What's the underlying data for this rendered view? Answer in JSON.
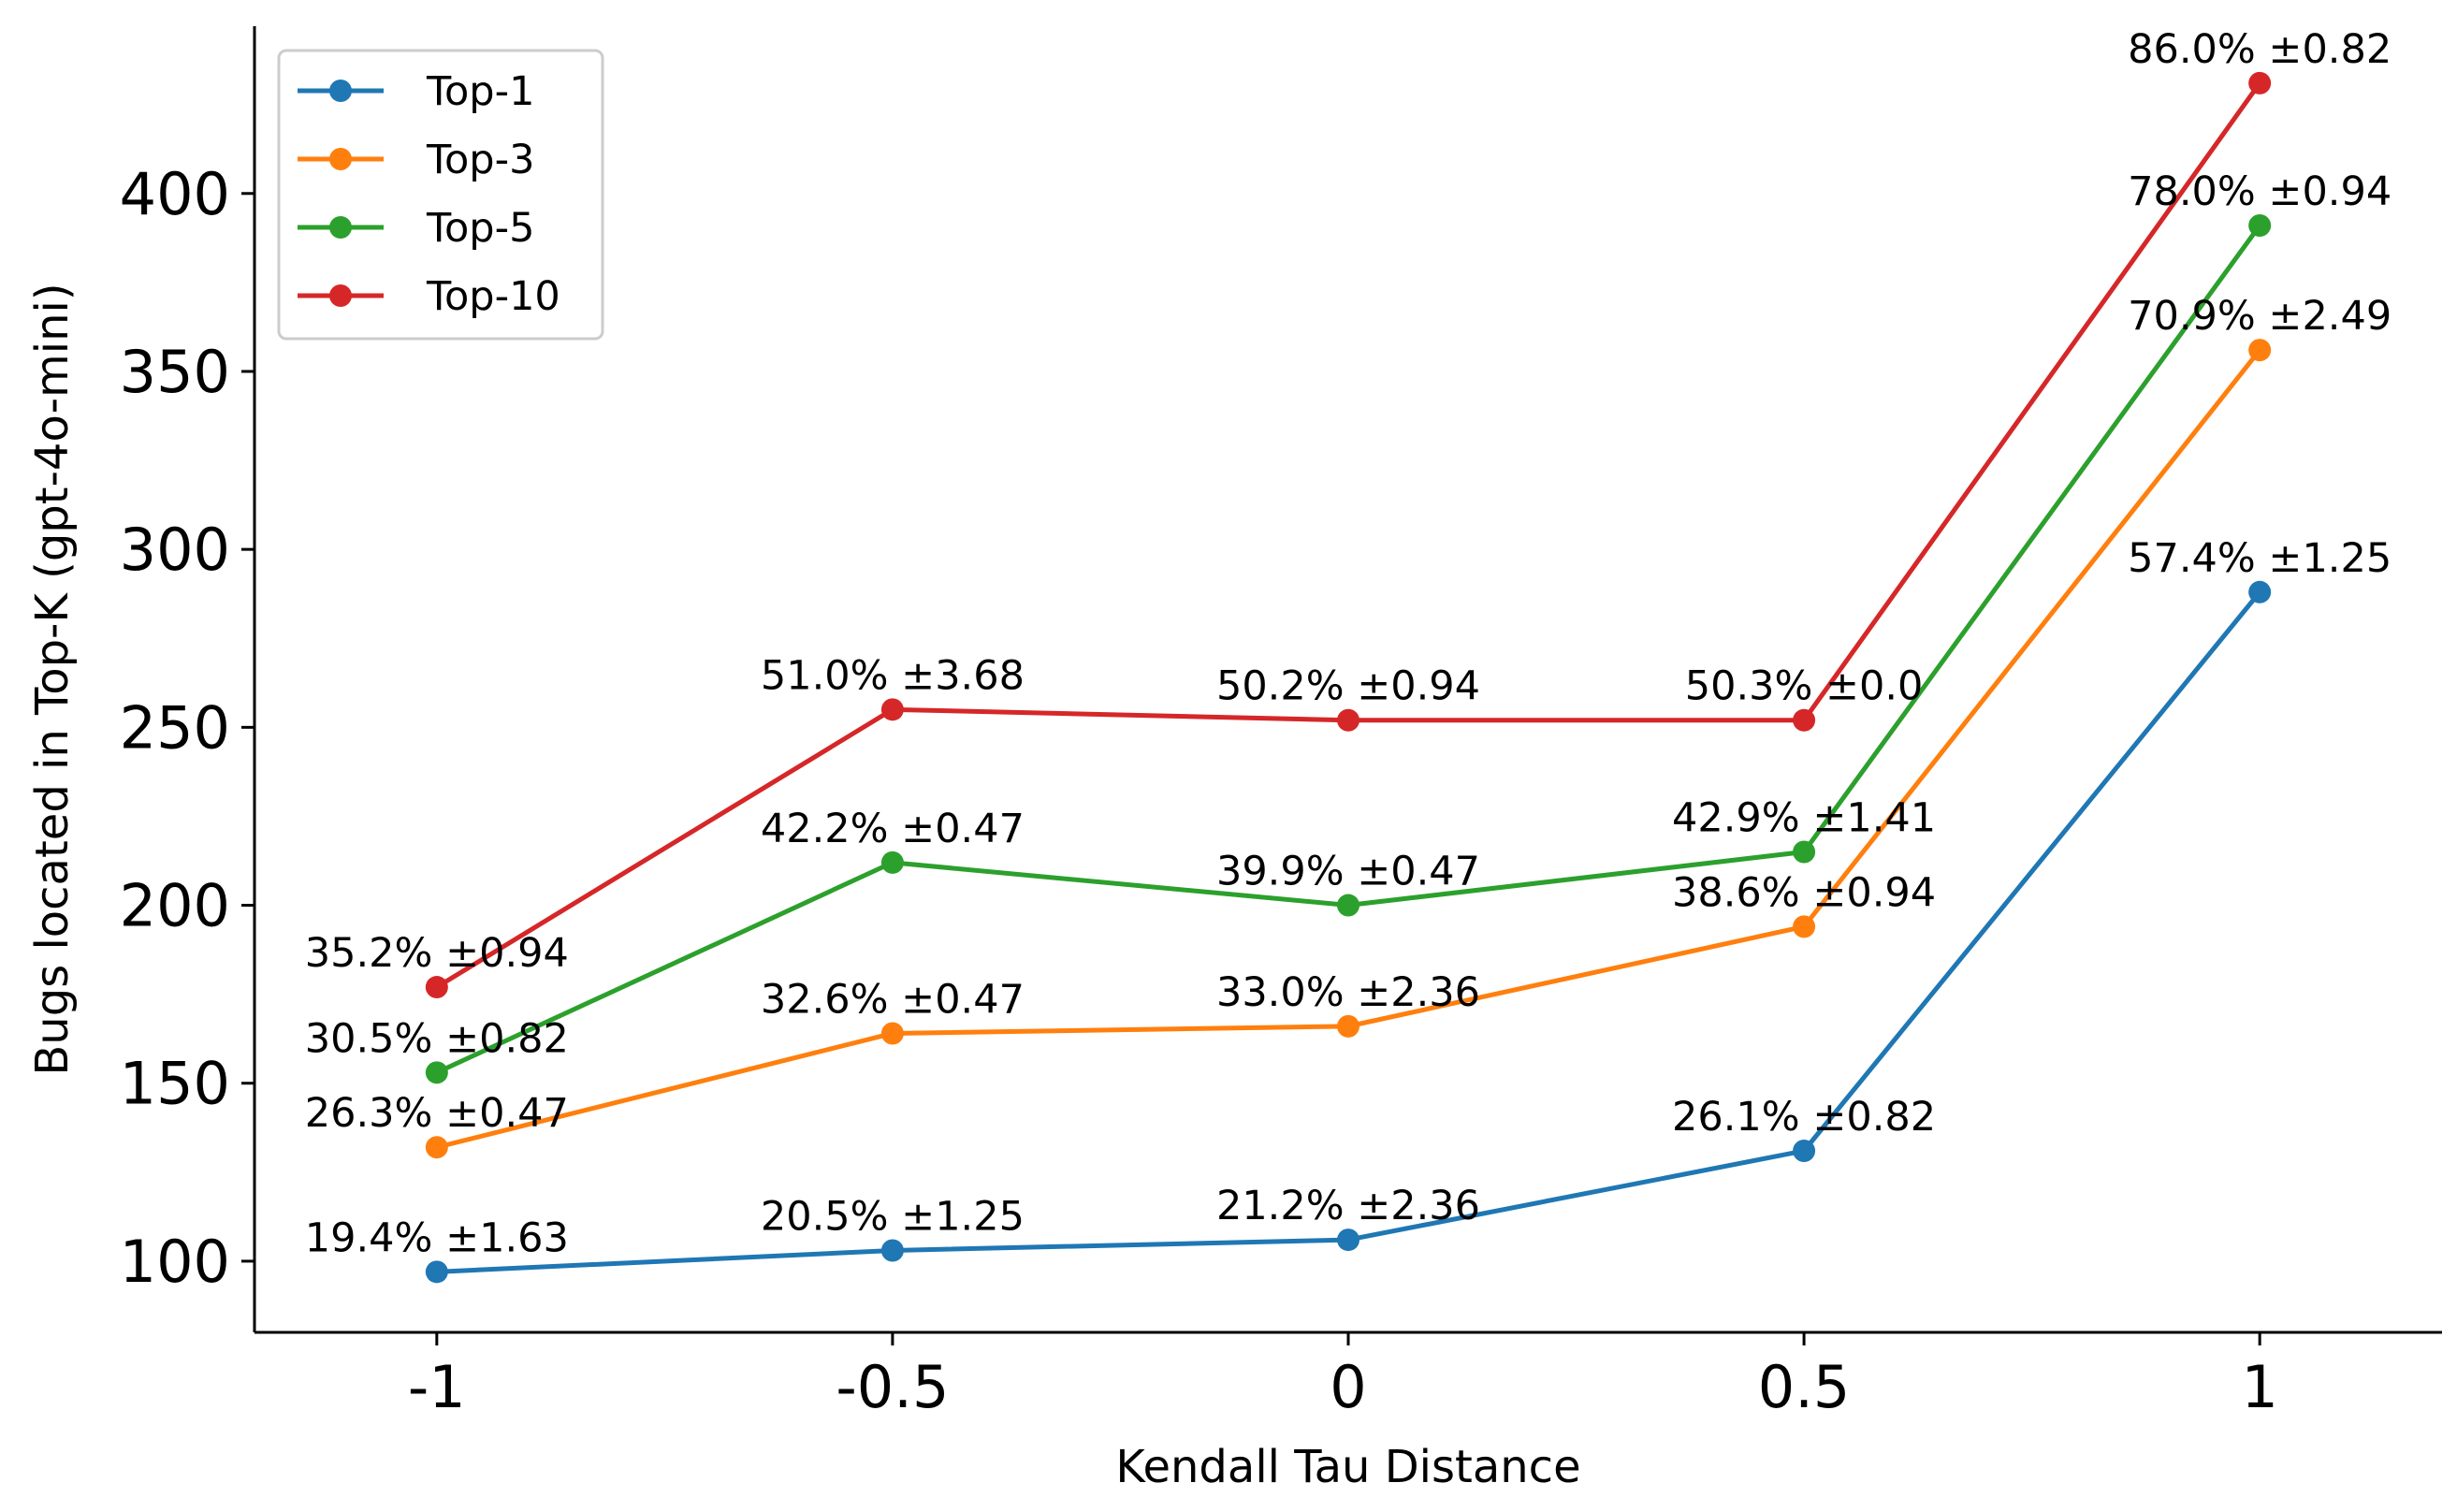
{
  "chart_data": {
    "type": "line",
    "title": "",
    "xlabel": "Kendall Tau Distance",
    "ylabel": "Bugs located in Top-K (gpt-4o-mini)",
    "x": [
      -1,
      -0.5,
      0,
      0.5,
      1
    ],
    "xtick_labels": [
      "-1",
      "-0.5",
      "0",
      "0.5",
      "1"
    ],
    "xlim": [
      -1.2,
      1.2
    ],
    "ylim": [
      80,
      447
    ],
    "yticks": [
      100,
      150,
      200,
      250,
      300,
      350,
      400
    ],
    "ytick_labels": [
      "100",
      "150",
      "200",
      "250",
      "300",
      "350",
      "400"
    ],
    "grid": false,
    "legend_position": "top-left",
    "series": [
      {
        "name": "Top-1",
        "color": "#1f77b4",
        "values": [
          97,
          103,
          106,
          131,
          288
        ],
        "labels": [
          "19.4% ±1.63",
          "20.5% ±1.25",
          "21.2% ±2.36",
          "26.1% ±0.82",
          "57.4% ±1.25"
        ]
      },
      {
        "name": "Top-3",
        "color": "#ff7f0e",
        "values": [
          132,
          164,
          166,
          194,
          356
        ],
        "labels": [
          "26.3% ±0.47",
          "32.6% ±0.47",
          "33.0% ±2.36",
          "38.6% ±0.94",
          "70.9% ±2.49"
        ]
      },
      {
        "name": "Top-5",
        "color": "#2ca02c",
        "values": [
          153,
          212,
          200,
          215,
          391
        ],
        "labels": [
          "30.5% ±0.82",
          "42.2% ±0.47",
          "39.9% ±0.47",
          "42.9% ±1.41",
          "78.0% ±0.94"
        ]
      },
      {
        "name": "Top-10",
        "color": "#d62728",
        "values": [
          177,
          255,
          252,
          252,
          431
        ],
        "labels": [
          "35.2% ±0.94",
          "51.0% ±3.68",
          "50.2% ±0.94",
          "50.3% ±0.0",
          "86.0% ±0.82"
        ]
      }
    ]
  }
}
